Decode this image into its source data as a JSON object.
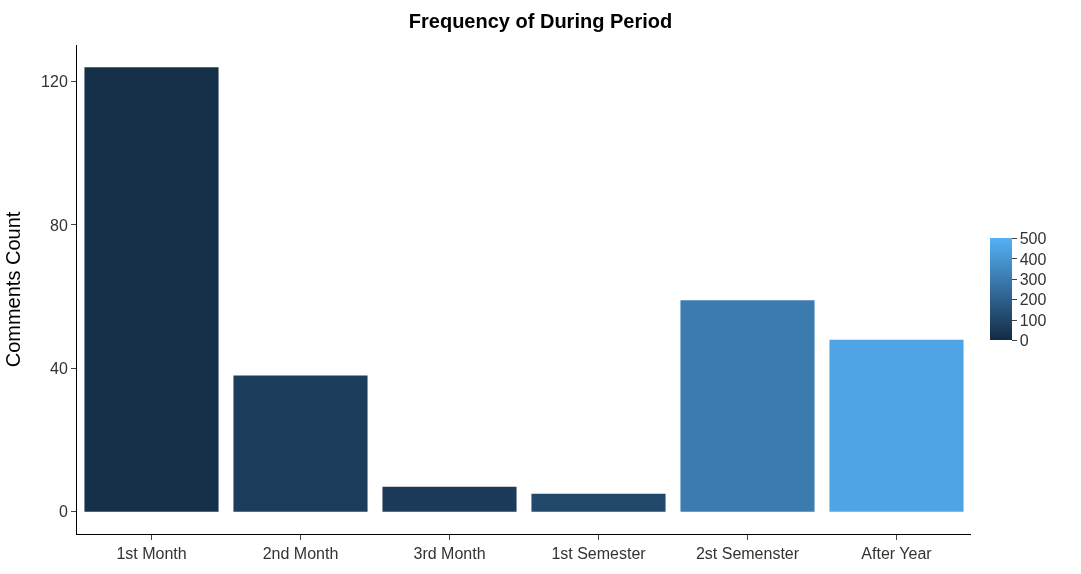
{
  "chart_data": {
    "type": "bar",
    "title": "Frequency of During Period",
    "ylabel": "Comments Count",
    "categories": [
      "1st Month",
      "2nd Month",
      "3rd Month",
      "1st Semester",
      "2st Semenster",
      "After Year"
    ],
    "values": [
      124,
      38,
      7,
      5,
      59,
      48
    ],
    "cvalues": [
      20,
      70,
      60,
      110,
      300,
      450
    ],
    "clim": [
      0,
      500
    ],
    "cticks": [
      0,
      100,
      200,
      300,
      400,
      500
    ],
    "ylim": [
      -6.2,
      130.2
    ],
    "yticks": [
      0,
      40,
      80,
      120
    ],
    "legend": false
  }
}
